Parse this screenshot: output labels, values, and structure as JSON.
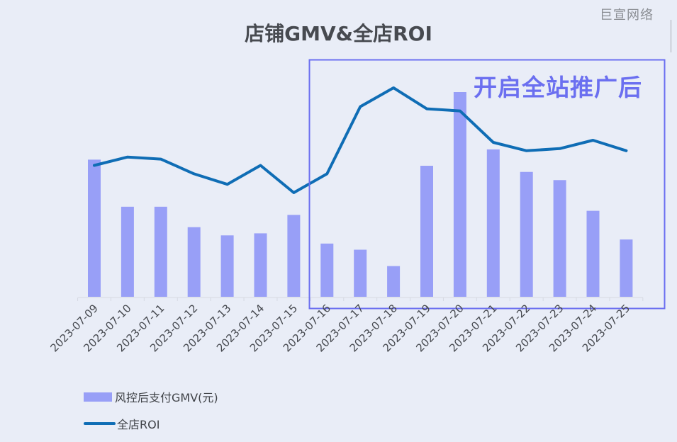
{
  "header": {
    "title": "店铺GMV&全店ROI",
    "brand_watermark": "巨宣网络"
  },
  "annotation": {
    "label": "开启全站推广后",
    "box_color": "#6b6ff0"
  },
  "legend": {
    "items": [
      {
        "label": "风控后支付GMV(元)",
        "type": "bar",
        "color": "#989ff7"
      },
      {
        "label": "全店ROI",
        "type": "line",
        "color": "#0f6db5"
      }
    ]
  },
  "colors": {
    "background": "#e9edf7",
    "bar": "#989ff7",
    "line": "#0f6db5",
    "title": "#474a50"
  },
  "chart_data": {
    "type": "bar+line",
    "title": "店铺GMV&全店ROI",
    "xlabel": "",
    "ylabel": "",
    "axes_visible": false,
    "grid": false,
    "legend_position": "bottom-left",
    "categories": [
      "2023-07-09",
      "2023-07-10",
      "2023-07-11",
      "2023-07-12",
      "2023-07-13",
      "2023-07-14",
      "2023-07-15",
      "2023-07-16",
      "2023-07-17",
      "2023-07-18",
      "2023-07-19",
      "2023-07-20",
      "2023-07-21",
      "2023-07-22",
      "2023-07-23",
      "2023-07-24",
      "2023-07-25"
    ],
    "series": [
      {
        "name": "风控后支付GMV(元)",
        "type": "bar",
        "unit": "relative (no axis shown, 0-100 scale of max bar)",
        "values": [
          67,
          44,
          44,
          34,
          30,
          31,
          40,
          26,
          23,
          15,
          64,
          100,
          72,
          61,
          57,
          42,
          28
        ]
      },
      {
        "name": "全店ROI",
        "type": "line",
        "unit": "relative (no axis shown, 0-100 scale of max point)",
        "values": [
          63,
          67,
          66,
          59,
          54,
          63,
          50,
          59,
          91,
          100,
          90,
          89,
          74,
          70,
          71,
          75,
          70
        ]
      }
    ],
    "annotations": [
      {
        "text": "开启全站推广后",
        "range": [
          "2023-07-16",
          "2023-07-25"
        ],
        "shape": "rectangle"
      }
    ]
  }
}
